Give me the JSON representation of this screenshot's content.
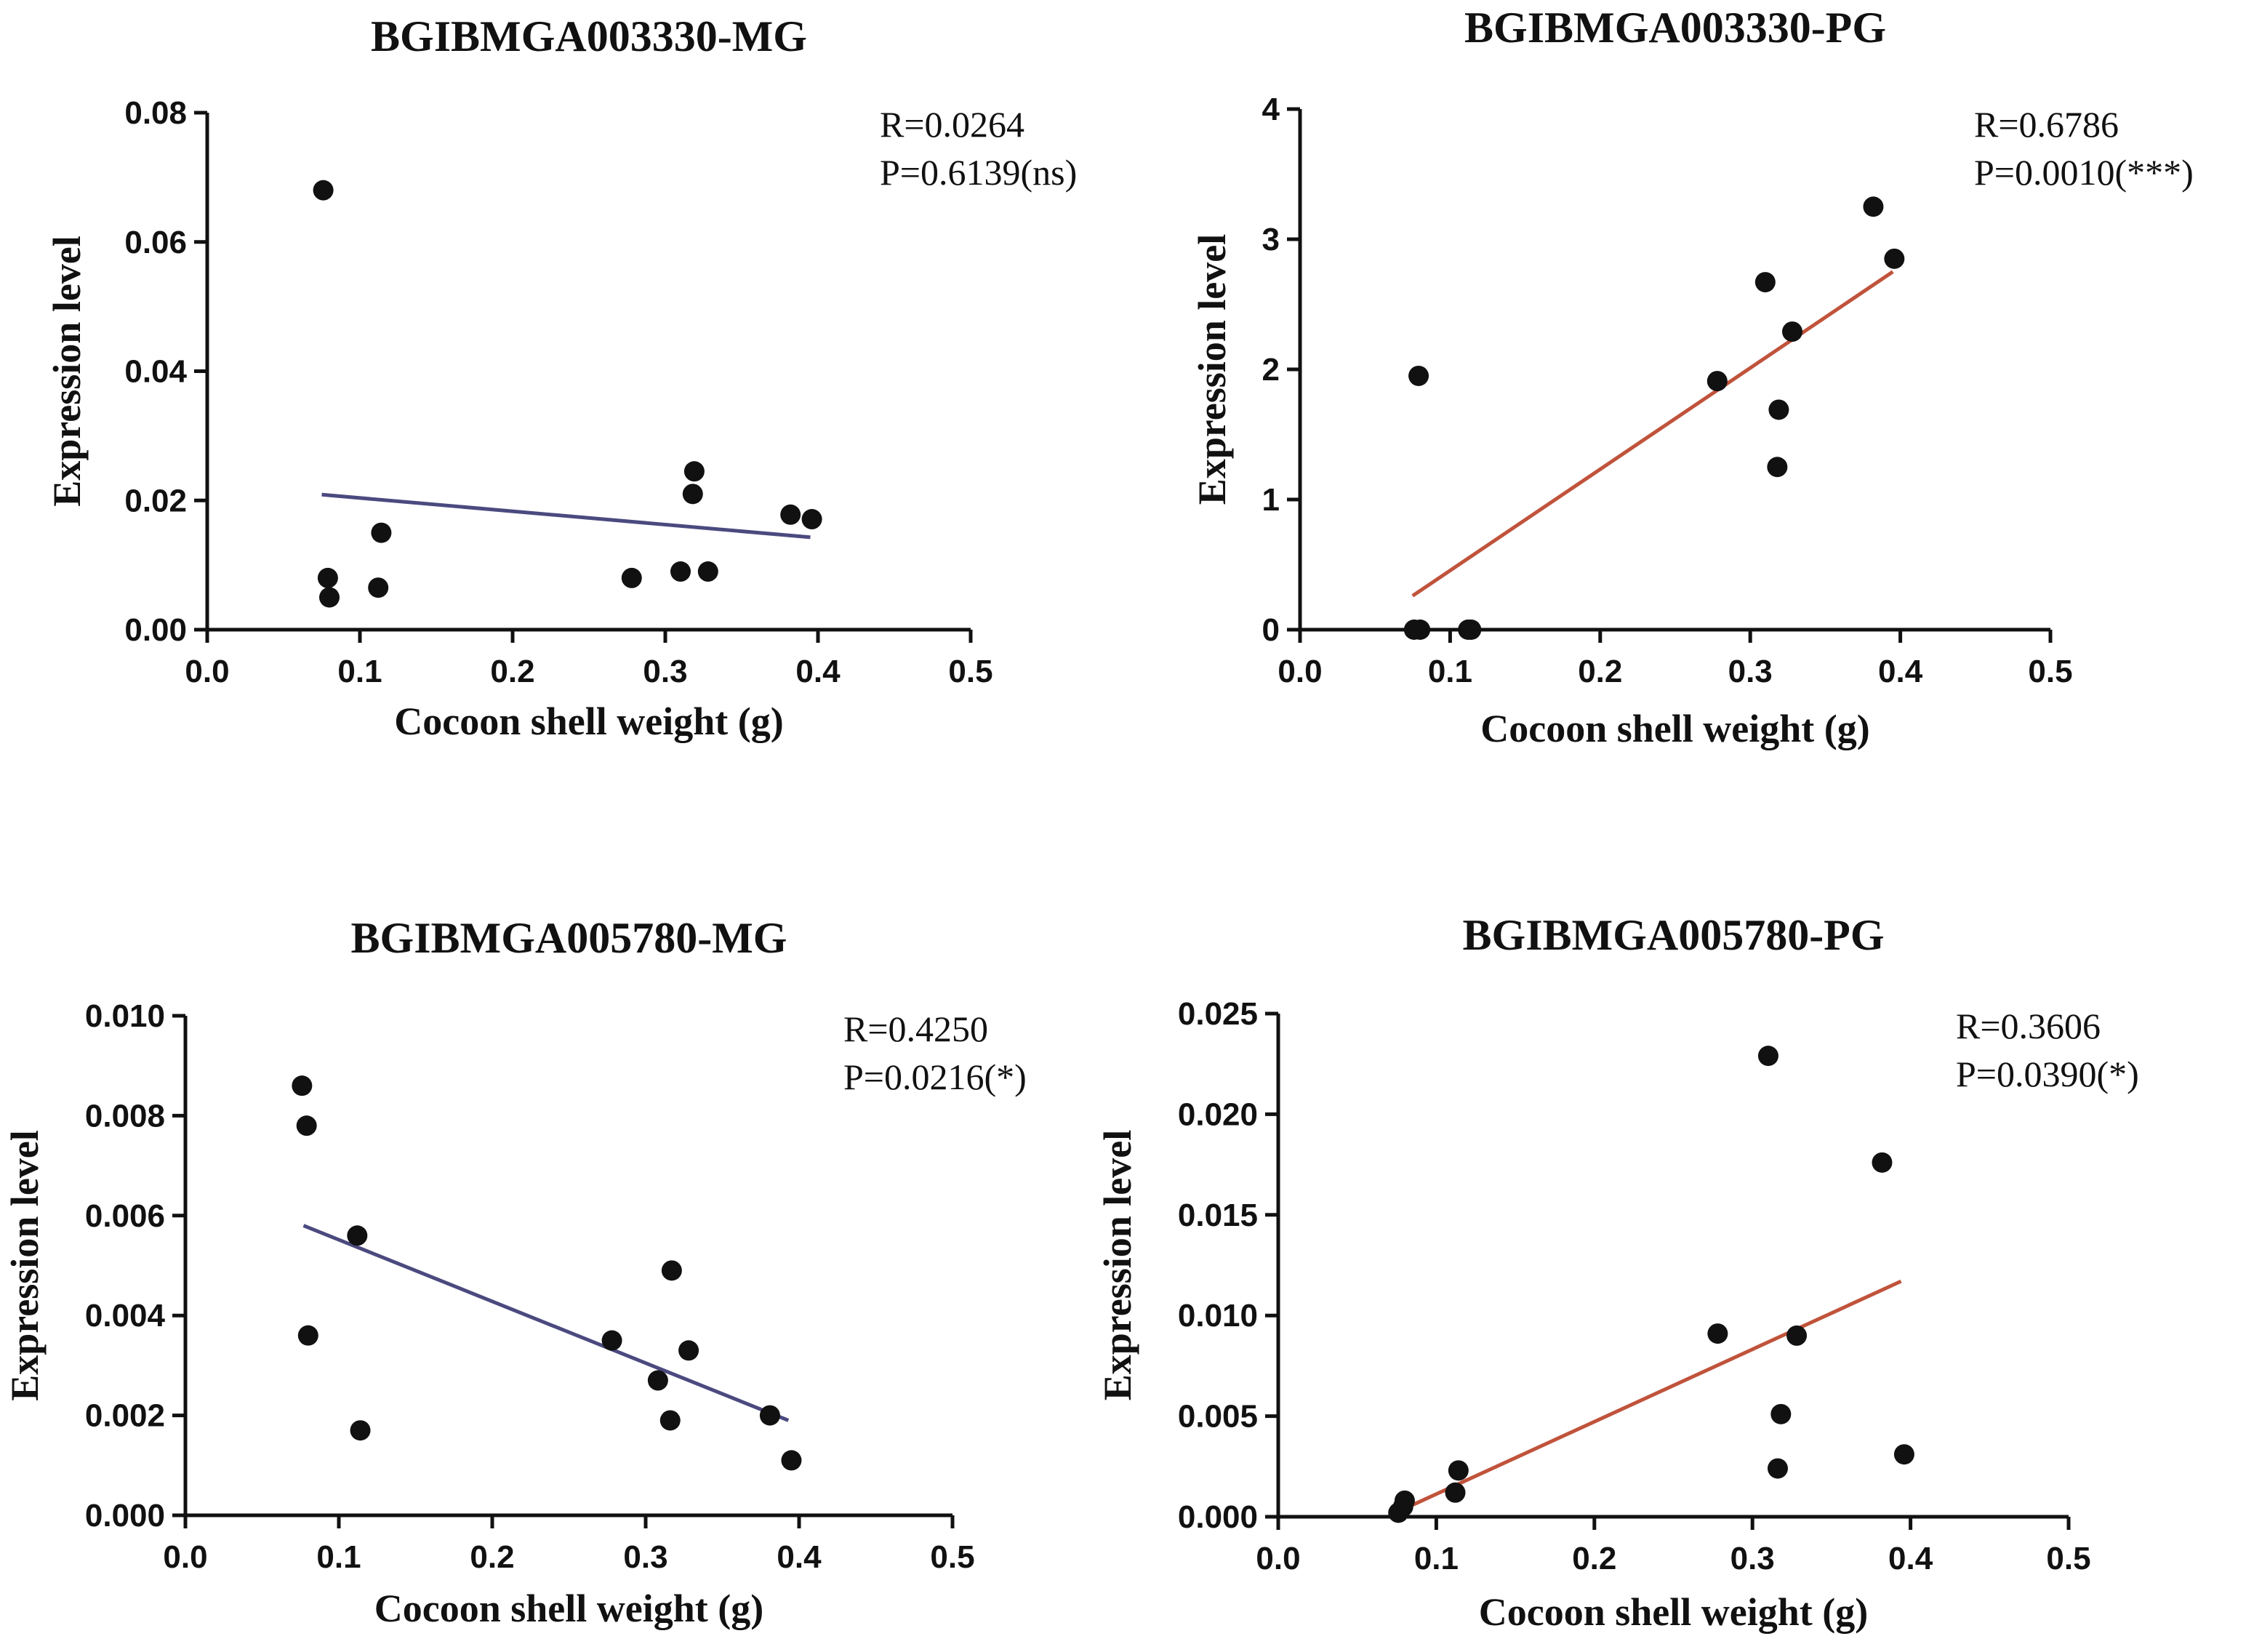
{
  "chart_data": [
    {
      "type": "scatter",
      "title": "BGIBMGA003330-MG",
      "xlabel": "Cocoon shell weight (g)",
      "ylabel": "Expression level",
      "xlim": [
        0,
        0.5
      ],
      "ylim": [
        0,
        0.08
      ],
      "xticks": [
        "0.0",
        "0.1",
        "0.2",
        "0.3",
        "0.4",
        "0.5"
      ],
      "yticks": [
        "0.00",
        "0.02",
        "0.04",
        "0.06",
        "0.08"
      ],
      "stats": {
        "r": "R=0.0264",
        "p": "P=0.6139(ns)"
      },
      "fit_color": "#4b4a7f",
      "fit": {
        "x": [
          0.075,
          0.395
        ],
        "y": [
          0.0209,
          0.0143
        ]
      },
      "points": [
        {
          "x": 0.076,
          "y": 0.068
        },
        {
          "x": 0.079,
          "y": 0.008
        },
        {
          "x": 0.08,
          "y": 0.005
        },
        {
          "x": 0.112,
          "y": 0.0065
        },
        {
          "x": 0.114,
          "y": 0.015
        },
        {
          "x": 0.278,
          "y": 0.008
        },
        {
          "x": 0.31,
          "y": 0.009
        },
        {
          "x": 0.318,
          "y": 0.021
        },
        {
          "x": 0.319,
          "y": 0.0245
        },
        {
          "x": 0.328,
          "y": 0.009
        },
        {
          "x": 0.382,
          "y": 0.0178
        },
        {
          "x": 0.396,
          "y": 0.0171
        }
      ]
    },
    {
      "type": "scatter",
      "title": "BGIBMGA003330-PG",
      "xlabel": "Cocoon shell weight (g)",
      "ylabel": "Expression level",
      "xlim": [
        0,
        0.5
      ],
      "ylim": [
        0,
        4
      ],
      "xticks": [
        "0.0",
        "0.1",
        "0.2",
        "0.3",
        "0.4",
        "0.5"
      ],
      "yticks": [
        "0",
        "1",
        "2",
        "3",
        "4"
      ],
      "stats": {
        "r": "R=0.6786",
        "p": "P=0.0010(***)"
      },
      "fit_color": "#c0533b",
      "fit": {
        "x": [
          0.075,
          0.395
        ],
        "y": [
          0.26,
          2.75
        ]
      },
      "points": [
        {
          "x": 0.076,
          "y": 0.0
        },
        {
          "x": 0.079,
          "y": 1.95
        },
        {
          "x": 0.08,
          "y": 0.0
        },
        {
          "x": 0.112,
          "y": 0.0
        },
        {
          "x": 0.114,
          "y": 0.0
        },
        {
          "x": 0.278,
          "y": 1.91
        },
        {
          "x": 0.31,
          "y": 2.67
        },
        {
          "x": 0.318,
          "y": 1.25
        },
        {
          "x": 0.319,
          "y": 1.69
        },
        {
          "x": 0.328,
          "y": 2.29
        },
        {
          "x": 0.382,
          "y": 3.25
        },
        {
          "x": 0.396,
          "y": 2.85
        }
      ]
    },
    {
      "type": "scatter",
      "title": "BGIBMGA005780-MG",
      "xlabel": "Cocoon shell weight (g)",
      "ylabel": "Expression level",
      "xlim": [
        0,
        0.5
      ],
      "ylim": [
        0,
        0.01
      ],
      "xticks": [
        "0.0",
        "0.1",
        "0.2",
        "0.3",
        "0.4",
        "0.5"
      ],
      "yticks": [
        "0.000",
        "0.002",
        "0.004",
        "0.006",
        "0.008",
        "0.010"
      ],
      "stats": {
        "r": "R=0.4250",
        "p": "P=0.0216(*)"
      },
      "fit_color": "#4b4a7f",
      "fit": {
        "x": [
          0.077,
          0.393
        ],
        "y": [
          0.0058,
          0.0019
        ]
      },
      "points": [
        {
          "x": 0.076,
          "y": 0.0086
        },
        {
          "x": 0.079,
          "y": 0.0078
        },
        {
          "x": 0.08,
          "y": 0.0036
        },
        {
          "x": 0.112,
          "y": 0.0056
        },
        {
          "x": 0.114,
          "y": 0.0017
        },
        {
          "x": 0.278,
          "y": 0.0035
        },
        {
          "x": 0.308,
          "y": 0.0027
        },
        {
          "x": 0.316,
          "y": 0.0019
        },
        {
          "x": 0.317,
          "y": 0.0049
        },
        {
          "x": 0.328,
          "y": 0.0033
        },
        {
          "x": 0.381,
          "y": 0.002
        },
        {
          "x": 0.395,
          "y": 0.0011
        }
      ]
    },
    {
      "type": "scatter",
      "title": "BGIBMGA005780-PG",
      "xlabel": "Cocoon shell weight (g)",
      "ylabel": "Expression level",
      "xlim": [
        0,
        0.5
      ],
      "ylim": [
        0,
        0.025
      ],
      "xticks": [
        "0.0",
        "0.1",
        "0.2",
        "0.3",
        "0.4",
        "0.5"
      ],
      "yticks": [
        "0.000",
        "0.005",
        "0.010",
        "0.015",
        "0.020",
        "0.025"
      ],
      "stats": {
        "r": "R=0.3606",
        "p": "P=0.0390(*)"
      },
      "fit_color": "#c0533b",
      "fit": {
        "x": [
          0.077,
          0.394
        ],
        "y": [
          0.0003,
          0.0117
        ]
      },
      "points": [
        {
          "x": 0.076,
          "y": 0.0002
        },
        {
          "x": 0.079,
          "y": 0.0005
        },
        {
          "x": 0.08,
          "y": 0.0008
        },
        {
          "x": 0.112,
          "y": 0.0012
        },
        {
          "x": 0.114,
          "y": 0.0023
        },
        {
          "x": 0.278,
          "y": 0.0091
        },
        {
          "x": 0.31,
          "y": 0.0229
        },
        {
          "x": 0.316,
          "y": 0.0024
        },
        {
          "x": 0.318,
          "y": 0.0051
        },
        {
          "x": 0.328,
          "y": 0.009
        },
        {
          "x": 0.382,
          "y": 0.0176
        },
        {
          "x": 0.396,
          "y": 0.0031
        }
      ]
    }
  ]
}
